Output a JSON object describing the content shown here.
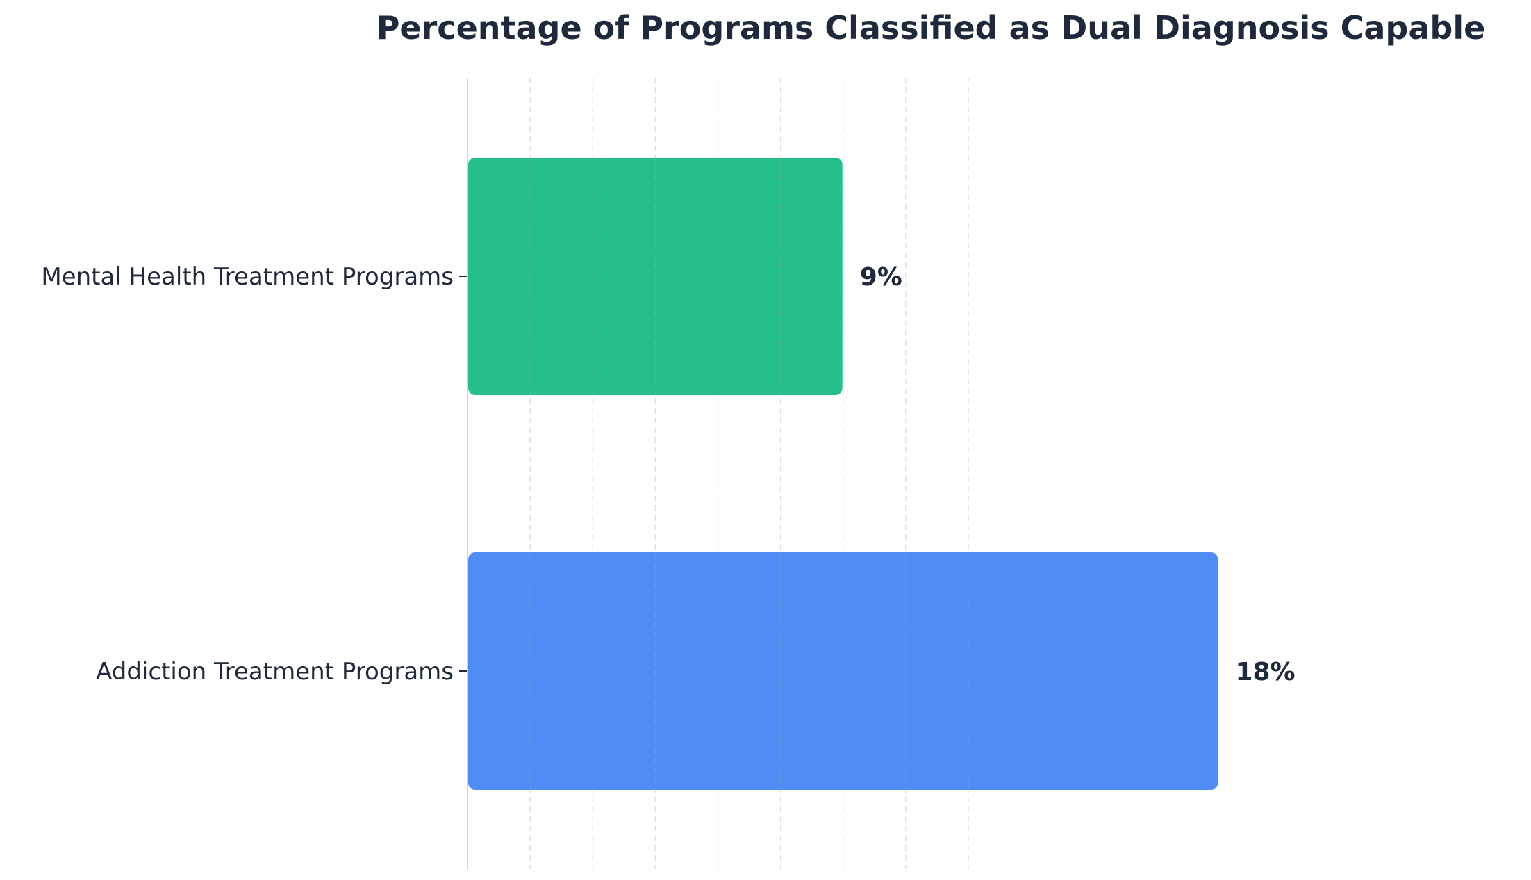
{
  "chart_data": {
    "type": "bar",
    "orientation": "horizontal",
    "title": "Percentage of Programs Classified as Dual Diagnosis Capable",
    "xlabel": "",
    "ylabel": "",
    "categories": [
      "Mental Health Treatment Programs",
      "Addiction Treatment Programs"
    ],
    "values": [
      9,
      18
    ],
    "value_labels": [
      "9%",
      "18%"
    ],
    "colors": [
      "#26bf8c",
      "#4f8df5"
    ],
    "xlim": [
      0,
      25
    ],
    "grid": "vertical dashed",
    "legend": "none"
  }
}
